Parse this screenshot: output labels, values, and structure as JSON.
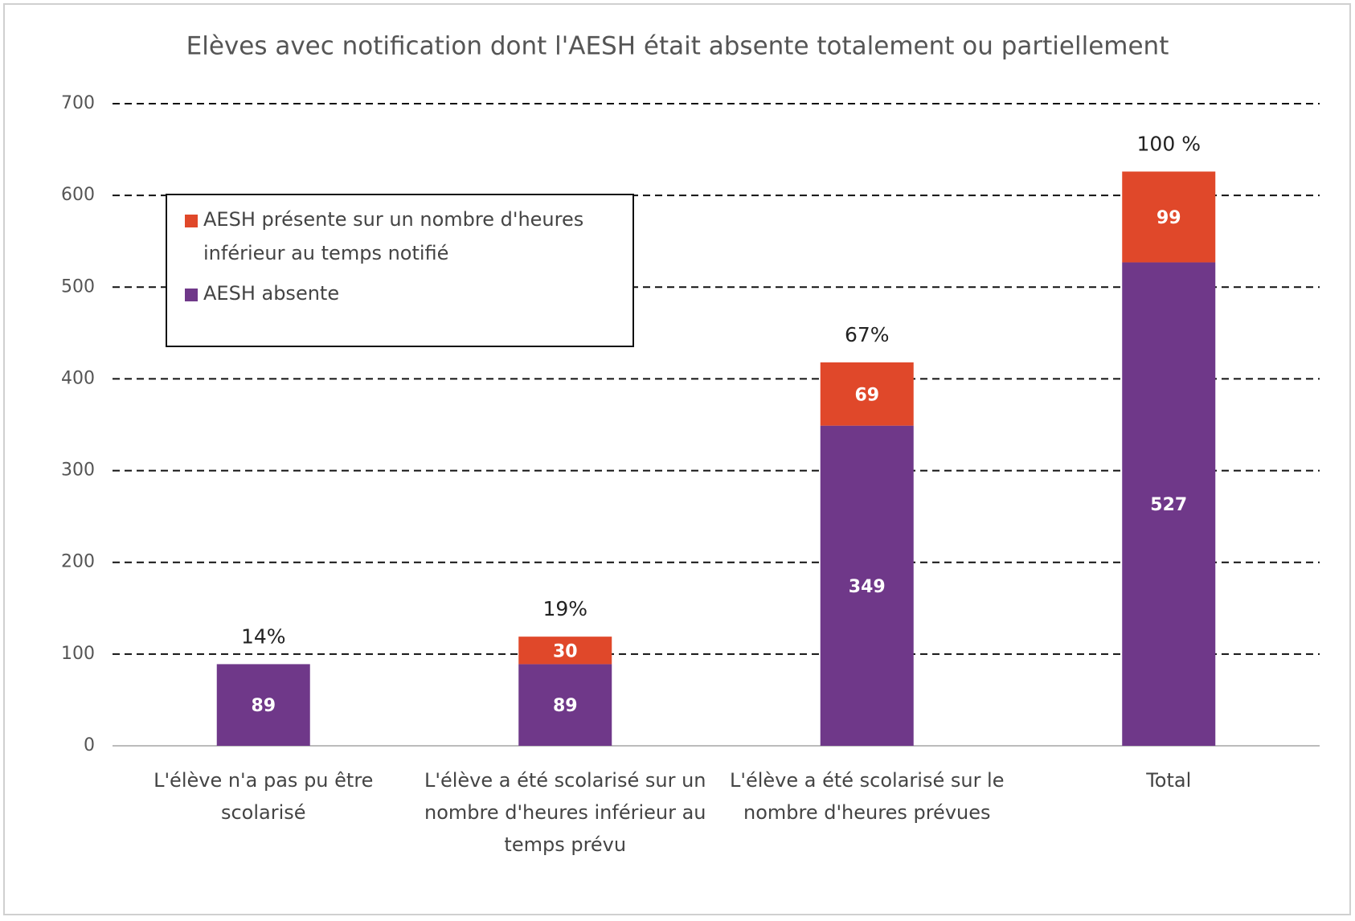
{
  "chart_data": {
    "type": "stacked_bar",
    "title": "Elèves avec notification dont l'AESH était absente totalement ou partiellement",
    "categories": [
      "L'élève n'a pas pu être scolarisé",
      "L'élève a été scolarisé sur un nombre d'heures inférieur au temps prévu",
      "L'élève a été scolarisé sur le nombre d'heures prévues",
      "Total"
    ],
    "series": [
      {
        "name": "AESH absente",
        "color": "#6f3889",
        "values": [
          89,
          89,
          349,
          527
        ]
      },
      {
        "name": "AESH présente sur un nombre d'heures inférieur au temps notifié",
        "color": "#e0482a",
        "values": [
          null,
          30,
          69,
          99
        ]
      }
    ],
    "annotations": [
      "14%",
      "19%",
      "67%",
      "100 %"
    ],
    "ylim": [
      0,
      700
    ],
    "yticks": [
      0,
      100,
      200,
      300,
      400,
      500,
      600,
      700
    ],
    "grid": true,
    "legend": "upper left"
  }
}
